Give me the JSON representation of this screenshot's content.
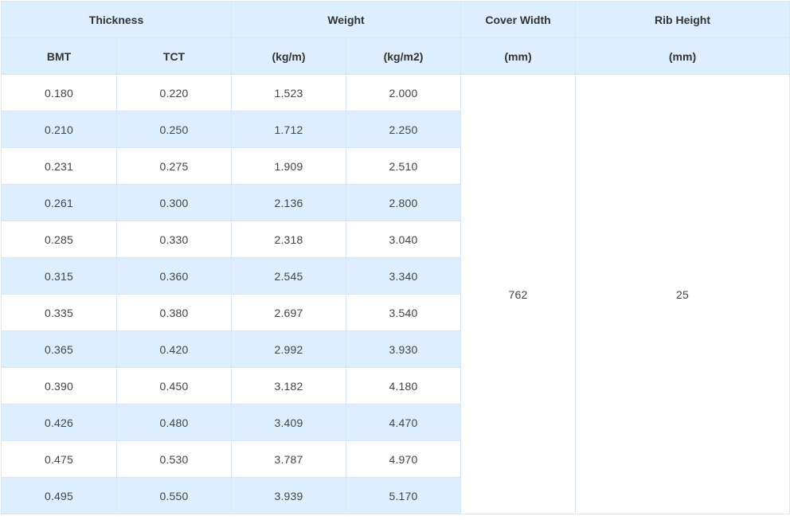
{
  "table": {
    "header": {
      "thickness": "Thickness",
      "weight": "Weight",
      "cover_width": "Cover Width",
      "rib_height": "Rib Height",
      "bmt": "BMT",
      "tct": "TCT",
      "kg_per_m": "(kg/m)",
      "kg_per_m2": "(kg/m2)",
      "cover_width_unit": "(mm)",
      "rib_height_unit": "(mm)"
    },
    "rows": [
      {
        "bmt": "0.180",
        "tct": "0.220",
        "kg_m": "1.523",
        "kg_m2": "2.000"
      },
      {
        "bmt": "0.210",
        "tct": "0.250",
        "kg_m": "1.712",
        "kg_m2": "2.250"
      },
      {
        "bmt": "0.231",
        "tct": "0.275",
        "kg_m": "1.909",
        "kg_m2": "2.510"
      },
      {
        "bmt": "0.261",
        "tct": "0.300",
        "kg_m": "2.136",
        "kg_m2": "2.800"
      },
      {
        "bmt": "0.285",
        "tct": "0.330",
        "kg_m": "2.318",
        "kg_m2": "3.040"
      },
      {
        "bmt": "0.315",
        "tct": "0.360",
        "kg_m": "2.545",
        "kg_m2": "3.340"
      },
      {
        "bmt": "0.335",
        "tct": "0.380",
        "kg_m": "2.697",
        "kg_m2": "3.540"
      },
      {
        "bmt": "0.365",
        "tct": "0.420",
        "kg_m": "2.992",
        "kg_m2": "3.930"
      },
      {
        "bmt": "0.390",
        "tct": "0.450",
        "kg_m": "3.182",
        "kg_m2": "4.180"
      },
      {
        "bmt": "0.426",
        "tct": "0.480",
        "kg_m": "3.409",
        "kg_m2": "4.470"
      },
      {
        "bmt": "0.475",
        "tct": "0.530",
        "kg_m": "3.787",
        "kg_m2": "4.970"
      },
      {
        "bmt": "0.495",
        "tct": "0.550",
        "kg_m": "3.939",
        "kg_m2": "5.170"
      }
    ],
    "cover_width_value": "762",
    "rib_height_value": "25"
  }
}
